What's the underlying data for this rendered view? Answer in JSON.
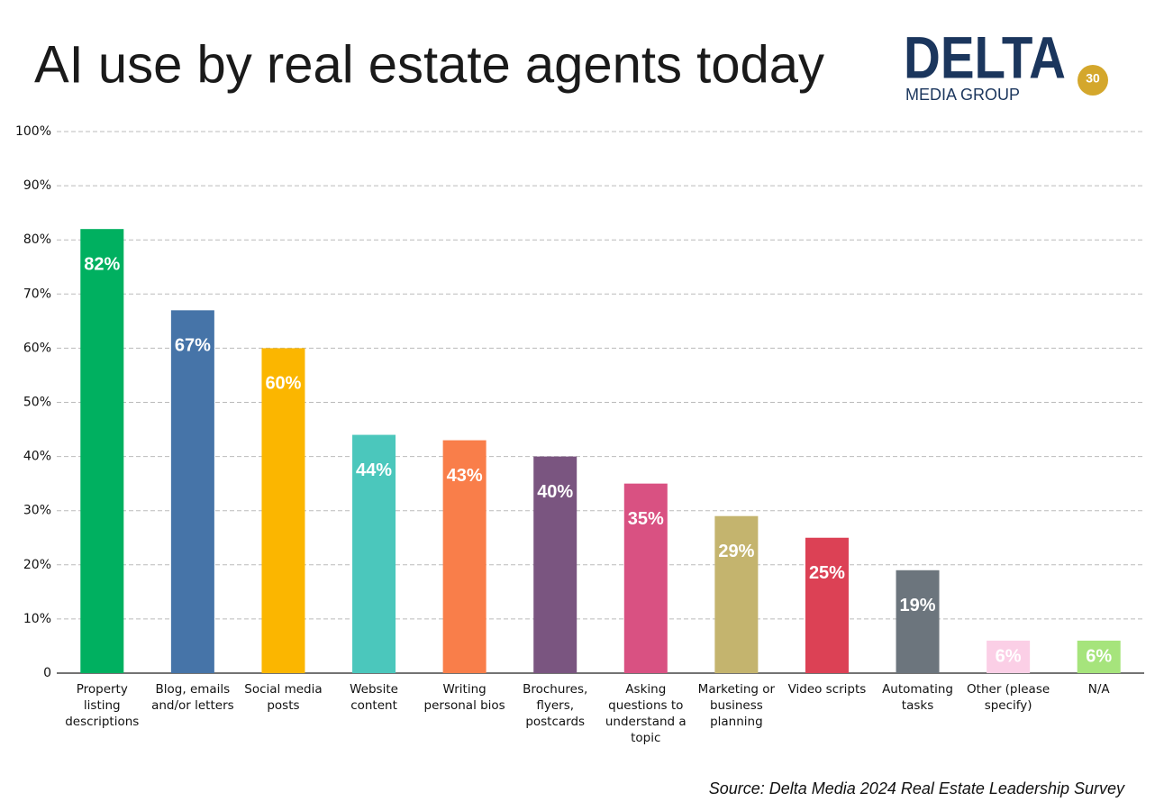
{
  "chart_data": {
    "type": "bar",
    "title": "AI use by real estate agents today",
    "logo": {
      "name": "DELTA",
      "subtitle": "MEDIA GROUP",
      "badge": "30"
    },
    "source": "Source: Delta Media 2024 Real Estate Leadership Survey",
    "categories": [
      "Property listing descriptions",
      "Blog, emails and/or letters",
      "Social media posts",
      "Website content",
      "Writing personal bios",
      "Brochures, flyers, postcards",
      "Asking questions to understand a topic",
      "Marketing or business planning",
      "Video scripts",
      "Automating tasks",
      "Other (please specify)",
      "N/A"
    ],
    "values": [
      82,
      67,
      60,
      44,
      43,
      40,
      35,
      29,
      25,
      19,
      6,
      6
    ],
    "value_labels": [
      "82%",
      "67%",
      "60%",
      "44%",
      "43%",
      "40%",
      "35%",
      "29%",
      "25%",
      "19%",
      "6%",
      "6%"
    ],
    "colors": [
      "#00b060",
      "#4674a8",
      "#fbb600",
      "#4bc7bc",
      "#f97e4a",
      "#7a5580",
      "#d95182",
      "#c4b46e",
      "#dc4155",
      "#6c757d",
      "#fbcfe6",
      "#a6e47c"
    ],
    "ylim": [
      0,
      100
    ],
    "yticks": [
      0,
      {
        "value": 10,
        "label": "10%"
      },
      {
        "value": 20,
        "label": "20%"
      },
      {
        "value": 30,
        "label": "30%"
      },
      {
        "value": 40,
        "label": "40%"
      },
      {
        "value": 50,
        "label": "50%"
      },
      {
        "value": 60,
        "label": "60%"
      },
      {
        "value": 70,
        "label": "70%"
      },
      {
        "value": 80,
        "label": "80%"
      },
      {
        "value": 90,
        "label": "90%"
      },
      {
        "value": 100,
        "label": "100%"
      }
    ],
    "grid": true
  }
}
